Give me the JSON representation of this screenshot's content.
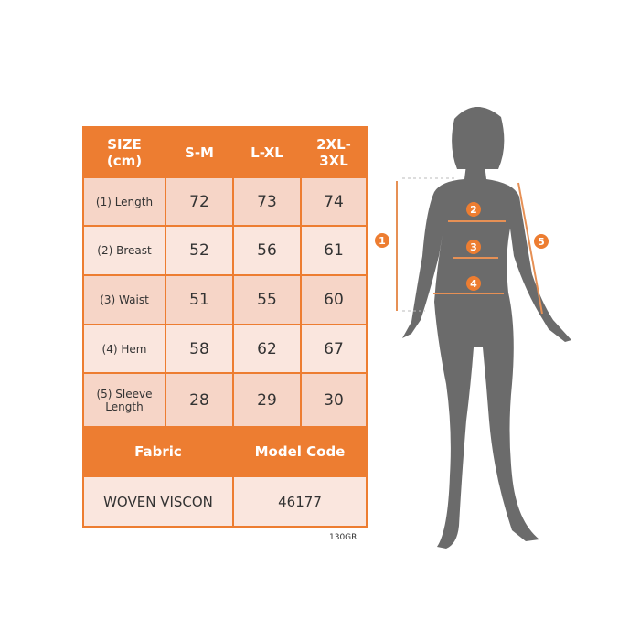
{
  "table": {
    "headers": [
      "SIZE\n(cm)",
      "S-M",
      "L-XL",
      "2XL-\n3XL"
    ],
    "header_lines": [
      [
        "SIZE",
        "(cm)"
      ],
      [
        "S-M"
      ],
      [
        "L-XL"
      ],
      [
        "2XL-",
        "3XL"
      ]
    ],
    "rows": [
      {
        "label": "(1) Length",
        "values": [
          "72",
          "73",
          "74"
        ]
      },
      {
        "label": "(2) Breast",
        "values": [
          "52",
          "56",
          "61"
        ]
      },
      {
        "label": "(3) Waist",
        "values": [
          "51",
          "55",
          "60"
        ]
      },
      {
        "label": "(4) Hem",
        "values": [
          "58",
          "62",
          "67"
        ]
      },
      {
        "label_lines": [
          "(5) Sleeve",
          "Length"
        ],
        "values": [
          "28",
          "29",
          "30"
        ]
      }
    ],
    "fabric_header": "Fabric",
    "model_code_header": "Model Code",
    "fabric": "WOVEN VISCON",
    "model_code": "46177"
  },
  "note": "130GR",
  "figure": {
    "markers": [
      "1",
      "2",
      "3",
      "4",
      "5"
    ]
  },
  "colors": {
    "accent": "#ED7D31",
    "cell": "#F6D5C7",
    "cell_alt": "#FAE6DE",
    "silhouette": "#6b6b6b"
  }
}
